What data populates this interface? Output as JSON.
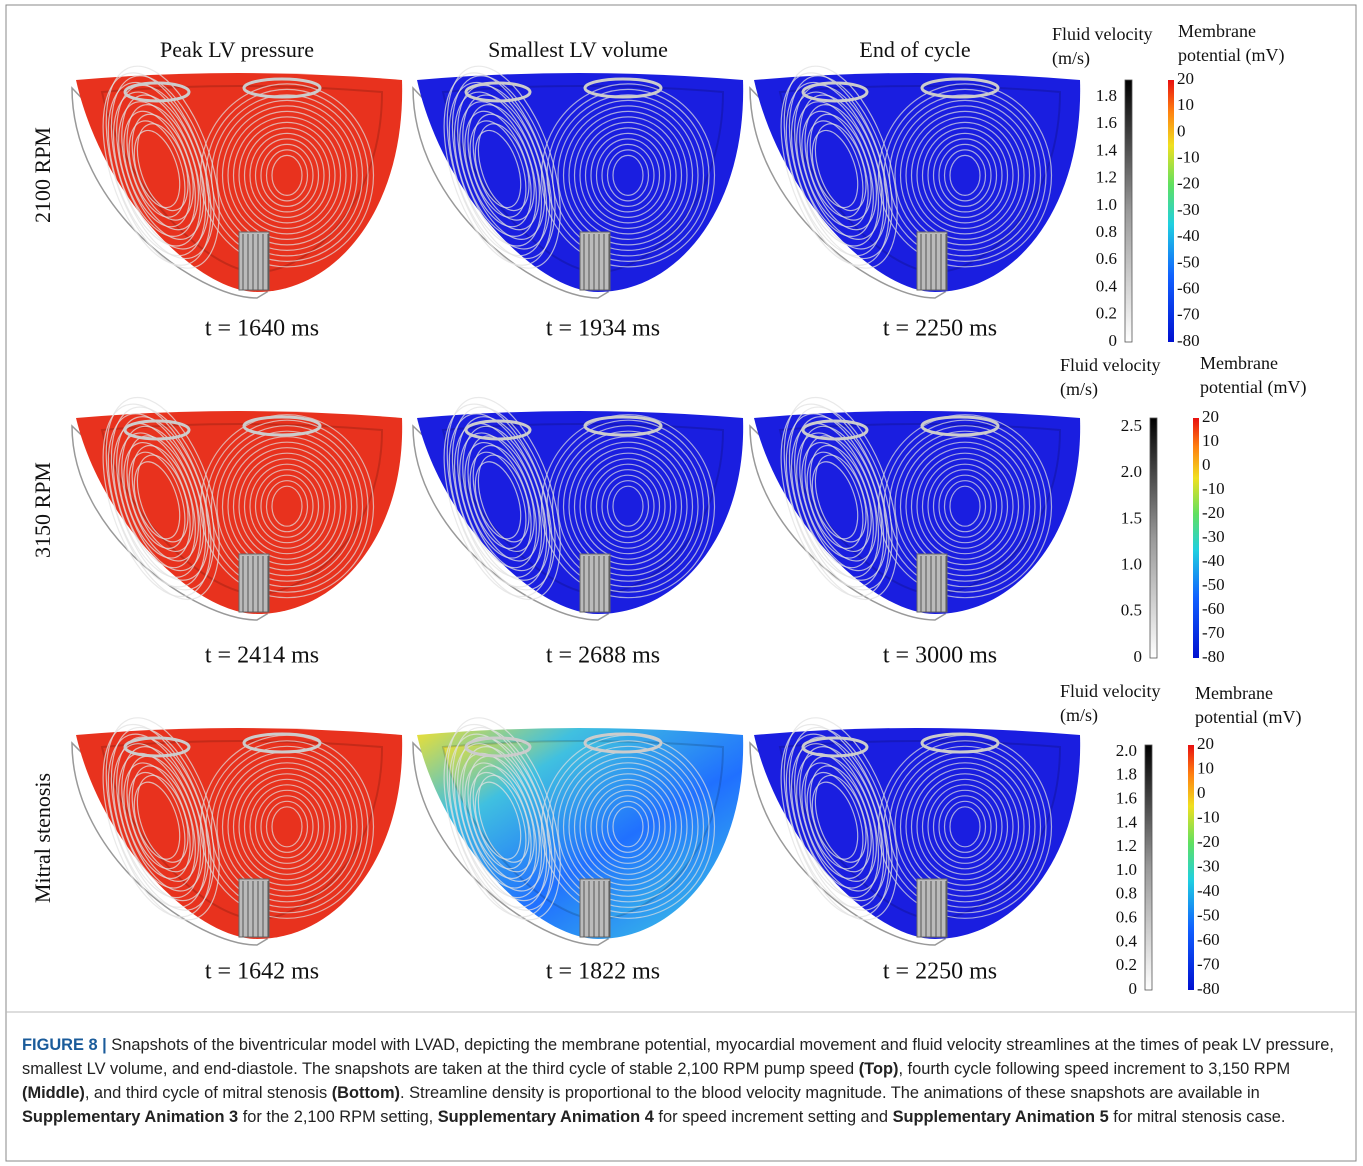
{
  "column_headers": [
    "Peak LV pressure",
    "Smallest LV volume",
    "End of cycle"
  ],
  "rows": [
    {
      "label": "2100 RPM",
      "times": [
        "t = 1640 ms",
        "t  = 1934 ms",
        "t  = 2250 ms"
      ],
      "legend": {
        "velocity_title": "Fluid velocity",
        "velocity_unit": "(m/s)",
        "potential_title": "Membrane",
        "potential_unit": "potential (mV)",
        "velocity_ticks": [
          "1.8",
          "1.6",
          "1.4",
          "1.2",
          "1.0",
          "0.8",
          "0.6",
          "0.4",
          "0.2",
          "0"
        ],
        "potential_ticks": [
          "20",
          "10",
          "0",
          "-10",
          "-20",
          "-30",
          "-40",
          "-50",
          "-60",
          "-70",
          "-80"
        ]
      }
    },
    {
      "label": "3150 RPM",
      "times": [
        "t = 2414 ms",
        "t  = 2688 ms",
        "t  = 3000 ms"
      ],
      "legend": {
        "velocity_title": "Fluid velocity",
        "velocity_unit": "(m/s)",
        "potential_title": "Membrane",
        "potential_unit": "potential (mV)",
        "velocity_ticks": [
          "2.5",
          "2.0",
          "1.5",
          "1.0",
          "0.5",
          "0"
        ],
        "potential_ticks": [
          "20",
          "10",
          "0",
          "-10",
          "-20",
          "-30",
          "-40",
          "-50",
          "-60",
          "-70",
          "-80"
        ]
      }
    },
    {
      "label": "Mitral stenosis",
      "times": [
        "t = 1642 ms",
        "t  = 1822 ms",
        "t  = 2250 ms"
      ],
      "legend": {
        "velocity_title": "Fluid velocity",
        "velocity_unit": "(m/s)",
        "potential_title": "Membrane",
        "potential_unit": "potential (mV)",
        "velocity_ticks": [
          "2.0",
          "1.8",
          "1.6",
          "1.4",
          "1.2",
          "1.0",
          "0.8",
          "0.6",
          "0.4",
          "0.2",
          "0"
        ],
        "potential_ticks": [
          "20",
          "10",
          "0",
          "-10",
          "-20",
          "-30",
          "-40",
          "-50",
          "-60",
          "-70",
          "-80"
        ]
      }
    }
  ],
  "caption": [
    "FIGURE 8 |",
    " Snapshots of the biventricular model with LVAD, depicting the membrane potential, myocardial movement and fluid velocity streamlines at the times of peak LV pressure, smallest LV volume, and end-diastole. The snapshots are taken at the third cycle of stable 2,100 RPM pump speed ",
    "(Top)",
    ", fourth cycle following speed increment to 3,150 RPM ",
    "(Middle)",
    ", and third cycle of mitral stenosis ",
    "(Bottom)",
    ". Streamline density is proportional to the blood velocity magnitude. The animations of these snapshots are available in ",
    "Supplementary Animation 3",
    " for the 2,100 RPM setting, ",
    "Supplementary Animation 4",
    " for speed increment setting and ",
    "Supplementary Animation 5",
    " for mitral stenosis case."
  ]
}
